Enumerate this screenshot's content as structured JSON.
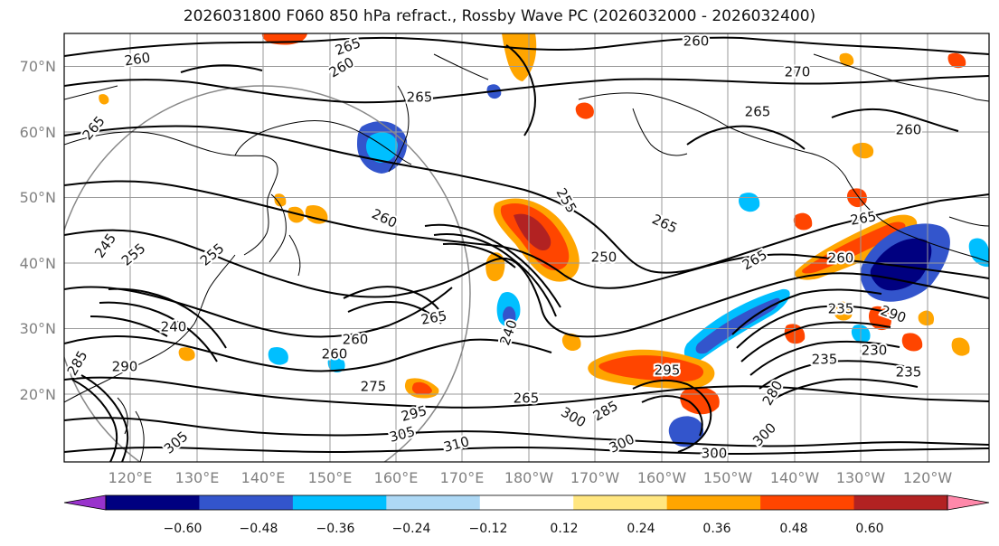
{
  "title": "2026031800 F060 850 hPa refract., Rossby Wave PC (2026032000 - 2026032400)",
  "latitude_labels": [
    "70°N",
    "60°N",
    "50°N",
    "40°N",
    "30°N",
    "20°N"
  ],
  "longitude_labels": [
    "120°E",
    "130°E",
    "140°E",
    "150°E",
    "160°E",
    "170°E",
    "180°W",
    "170°W",
    "160°W",
    "150°W",
    "140°W",
    "130°W",
    "120°W"
  ],
  "colorbar": {
    "ticks": [
      "−0.60",
      "−0.48",
      "−0.36",
      "−0.24",
      "−0.12",
      "0.12",
      "0.24",
      "0.36",
      "0.48",
      "0.60"
    ],
    "colors": [
      "#9933cc",
      "#000080",
      "#3355cc",
      "#00bfff",
      "#add8f5",
      "#ffffff",
      "#ffe680",
      "#ffa500",
      "#ff4500",
      "#b22222",
      "#ff88aa"
    ]
  },
  "contour_labels": [
    "260",
    "265",
    "260",
    "260",
    "270",
    "265",
    "265",
    "260",
    "265",
    "255",
    "250",
    "265",
    "265",
    "265",
    "260",
    "260",
    "255",
    "255",
    "265",
    "260",
    "245",
    "240",
    "235",
    "290",
    "295",
    "285",
    "275",
    "265",
    "260",
    "290",
    "305",
    "310",
    "300",
    "300",
    "285",
    "280",
    "300",
    "300",
    "240",
    "235",
    "235",
    "230",
    "295",
    "305"
  ],
  "colors": {
    "land_outline": "#000000",
    "grid": "#9a9a9a",
    "circle": "#888888"
  }
}
